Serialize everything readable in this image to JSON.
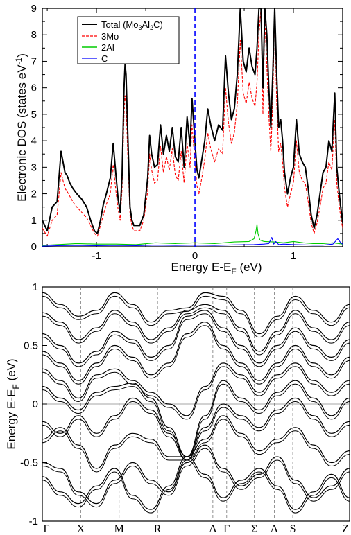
{
  "chart_data": [
    {
      "type": "line",
      "xlabel": "Energy E-E",
      "xlabel_sub": "F",
      "xlabel_unit": " (eV)",
      "ylabel": "Electronic DOS (states eV",
      "ylabel_sup": "-1",
      "ylabel_end": ")",
      "xlim": [
        -1.55,
        1.5
      ],
      "ylim": [
        0,
        9
      ],
      "xticks": [
        -1,
        0,
        1
      ],
      "xtick_labels": [
        "-1",
        "0",
        "1"
      ],
      "yticks": [
        0,
        1,
        2,
        3,
        4,
        5,
        6,
        7,
        8,
        9
      ],
      "ytick_labels": [
        "0",
        "1",
        "2",
        "3",
        "4",
        "5",
        "6",
        "7",
        "8",
        "9"
      ],
      "fermi_level": 0,
      "legend_position": "top-left",
      "legend": [
        {
          "label": "Total (Mo",
          "sub1": "3",
          "mid1": "Al",
          "sub2": "2",
          "end": "C)",
          "color": "#000000",
          "dash": false
        },
        {
          "label": "3Mo",
          "color": "#ff0000",
          "dash": true
        },
        {
          "label": "2Al",
          "color": "#00cc00",
          "dash": false
        },
        {
          "label": "C",
          "color": "#0000ff",
          "dash": false
        }
      ],
      "series": [
        {
          "name": "Total",
          "color": "#000000",
          "x": [
            -1.55,
            -1.5,
            -1.45,
            -1.4,
            -1.36,
            -1.32,
            -1.3,
            -1.27,
            -1.24,
            -1.2,
            -1.15,
            -1.1,
            -1.06,
            -1.02,
            -0.99,
            -0.96,
            -0.93,
            -0.9,
            -0.86,
            -0.83,
            -0.8,
            -0.78,
            -0.76,
            -0.74,
            -0.72,
            -0.71,
            -0.7,
            -0.68,
            -0.66,
            -0.64,
            -0.62,
            -0.59,
            -0.56,
            -0.52,
            -0.48,
            -0.46,
            -0.44,
            -0.41,
            -0.38,
            -0.35,
            -0.32,
            -0.29,
            -0.26,
            -0.23,
            -0.2,
            -0.17,
            -0.14,
            -0.11,
            -0.08,
            -0.05,
            -0.03,
            0,
            0.02,
            0.04,
            0.07,
            0.1,
            0.13,
            0.16,
            0.2,
            0.24,
            0.28,
            0.31,
            0.34,
            0.37,
            0.4,
            0.43,
            0.46,
            0.49,
            0.52,
            0.55,
            0.58,
            0.61,
            0.63,
            0.65,
            0.67,
            0.69,
            0.71,
            0.73,
            0.75,
            0.77,
            0.79,
            0.81,
            0.83,
            0.85,
            0.87,
            0.89,
            0.91,
            0.94,
            0.97,
            1.0,
            1.03,
            1.06,
            1.09,
            1.12,
            1.15,
            1.18,
            1.21,
            1.24,
            1.27,
            1.3,
            1.33,
            1.36,
            1.39,
            1.42,
            1.44,
            1.46,
            1.48,
            1.5
          ],
          "y": [
            1.0,
            0.6,
            1.5,
            1.7,
            3.6,
            2.8,
            2.7,
            2.4,
            2.2,
            2.0,
            1.8,
            1.5,
            1.0,
            0.6,
            0.5,
            1.0,
            1.6,
            2.0,
            2.6,
            3.9,
            2.6,
            1.8,
            1.3,
            2.7,
            6.0,
            6.9,
            6.5,
            4.0,
            1.5,
            1.0,
            0.8,
            0.8,
            0.8,
            1.2,
            2.6,
            4.2,
            3.5,
            3.0,
            3.1,
            4.6,
            3.5,
            4.2,
            3.6,
            4.5,
            3.4,
            3.2,
            4.5,
            3.0,
            4.9,
            3.8,
            5.6,
            4.0,
            2.9,
            2.6,
            3.3,
            4.0,
            5.2,
            4.6,
            4.0,
            4.6,
            4.4,
            7.2,
            5.8,
            4.8,
            5.2,
            6.5,
            9.0,
            7.0,
            6.6,
            7.5,
            6.8,
            6.5,
            7.5,
            9.0,
            9.0,
            6.0,
            9.0,
            8.0,
            6.0,
            4.5,
            6.5,
            9.0,
            6.5,
            4.5,
            4.8,
            4.0,
            2.8,
            2.0,
            2.6,
            3.0,
            4.8,
            3.5,
            3.2,
            3.0,
            2.2,
            1.2,
            0.7,
            1.2,
            2.0,
            2.8,
            3.0,
            4.0,
            3.6,
            5.8,
            3.0,
            2.2,
            1.5,
            0.9
          ]
        },
        {
          "name": "3Mo",
          "color": "#ff0000",
          "x": [
            -1.55,
            -1.5,
            -1.45,
            -1.4,
            -1.36,
            -1.32,
            -1.3,
            -1.27,
            -1.24,
            -1.2,
            -1.15,
            -1.1,
            -1.06,
            -1.02,
            -0.99,
            -0.96,
            -0.93,
            -0.9,
            -0.86,
            -0.83,
            -0.8,
            -0.78,
            -0.76,
            -0.74,
            -0.72,
            -0.71,
            -0.7,
            -0.68,
            -0.66,
            -0.64,
            -0.62,
            -0.59,
            -0.56,
            -0.52,
            -0.48,
            -0.46,
            -0.44,
            -0.41,
            -0.38,
            -0.35,
            -0.32,
            -0.29,
            -0.26,
            -0.23,
            -0.2,
            -0.17,
            -0.14,
            -0.11,
            -0.08,
            -0.05,
            -0.03,
            0,
            0.02,
            0.04,
            0.07,
            0.1,
            0.13,
            0.16,
            0.2,
            0.24,
            0.28,
            0.31,
            0.34,
            0.37,
            0.4,
            0.43,
            0.46,
            0.49,
            0.52,
            0.55,
            0.58,
            0.61,
            0.63,
            0.65,
            0.67,
            0.69,
            0.71,
            0.73,
            0.75,
            0.77,
            0.79,
            0.81,
            0.83,
            0.85,
            0.87,
            0.89,
            0.91,
            0.94,
            0.97,
            1.0,
            1.03,
            1.06,
            1.09,
            1.12,
            1.15,
            1.18,
            1.21,
            1.24,
            1.27,
            1.3,
            1.33,
            1.36,
            1.39,
            1.42,
            1.44,
            1.46,
            1.48,
            1.5
          ],
          "y": [
            0.7,
            0.4,
            1.0,
            1.2,
            2.8,
            2.2,
            2.1,
            1.9,
            1.7,
            1.5,
            1.3,
            1.1,
            0.8,
            0.5,
            0.4,
            0.8,
            1.2,
            1.6,
            2.0,
            3.1,
            2.0,
            1.4,
            1.0,
            2.2,
            5.0,
            5.7,
            5.4,
            3.2,
            1.2,
            0.8,
            0.6,
            0.6,
            0.6,
            1.0,
            2.1,
            3.5,
            2.9,
            2.4,
            2.5,
            3.8,
            2.8,
            3.4,
            2.9,
            3.7,
            2.7,
            2.5,
            3.6,
            2.4,
            3.9,
            3.0,
            4.6,
            3.2,
            2.3,
            2.0,
            2.6,
            3.3,
            4.3,
            3.7,
            3.2,
            3.7,
            3.5,
            6.0,
            4.7,
            3.9,
            4.3,
            5.4,
            7.8,
            5.8,
            5.4,
            6.2,
            5.6,
            5.3,
            6.2,
            8.0,
            9.0,
            5.0,
            8.6,
            6.8,
            5.0,
            3.6,
            5.4,
            9.0,
            5.4,
            3.6,
            3.9,
            3.2,
            2.2,
            1.5,
            2.0,
            2.4,
            4.0,
            2.8,
            2.5,
            2.4,
            1.7,
            0.9,
            0.5,
            0.9,
            1.5,
            2.2,
            2.4,
            3.2,
            2.9,
            4.8,
            2.4,
            1.7,
            1.1,
            0.7
          ]
        },
        {
          "name": "2Al",
          "color": "#00cc00",
          "x": [
            -1.55,
            -1.4,
            -1.2,
            -1.0,
            -0.8,
            -0.6,
            -0.4,
            -0.2,
            0,
            0.2,
            0.4,
            0.55,
            0.6,
            0.62,
            0.63,
            0.64,
            0.66,
            0.7,
            0.8,
            0.9,
            1.0,
            1.1,
            1.2,
            1.3,
            1.4,
            1.5
          ],
          "y": [
            0.05,
            0.08,
            0.12,
            0.1,
            0.1,
            0.08,
            0.15,
            0.12,
            0.15,
            0.12,
            0.18,
            0.2,
            0.3,
            0.6,
            0.85,
            0.5,
            0.25,
            0.2,
            0.18,
            0.15,
            0.2,
            0.15,
            0.12,
            0.12,
            0.15,
            0.1
          ]
        },
        {
          "name": "C",
          "color": "#0000ff",
          "x": [
            -1.55,
            -1.4,
            -1.2,
            -1.0,
            -0.8,
            -0.6,
            -0.4,
            -0.2,
            0,
            0.2,
            0.4,
            0.6,
            0.7,
            0.75,
            0.78,
            0.8,
            0.82,
            0.85,
            0.9,
            1.0,
            1.1,
            1.2,
            1.3,
            1.4,
            1.45,
            1.48,
            1.5
          ],
          "y": [
            0.02,
            0.04,
            0.05,
            0.04,
            0.05,
            0.04,
            0.06,
            0.05,
            0.06,
            0.05,
            0.07,
            0.08,
            0.1,
            0.12,
            0.35,
            0.1,
            0.2,
            0.08,
            0.1,
            0.08,
            0.07,
            0.06,
            0.06,
            0.1,
            0.3,
            0.15,
            0.1
          ]
        }
      ]
    },
    {
      "type": "line",
      "ylabel": "Energy E-E",
      "ylabel_sub": "F",
      "ylabel_unit": " (eV)",
      "ylim": [
        -1,
        1
      ],
      "yticks": [
        -1,
        -0.5,
        0,
        0.5,
        1
      ],
      "ytick_labels": [
        "-1",
        "-0.5",
        "0",
        "0.5",
        "1"
      ],
      "kpoint_labels": [
        "Γ",
        "X",
        "M",
        "R",
        "Δ",
        "Γ",
        "Σ",
        "Λ",
        "S",
        "Z"
      ],
      "kpoint_positions": [
        0,
        0.125,
        0.25,
        0.375,
        0.555,
        0.6,
        0.69,
        0.755,
        0.815,
        1.0
      ],
      "bands": [
        [
          -0.62,
          -0.75,
          -0.85,
          -0.7,
          -0.55,
          -0.78,
          -0.9,
          -0.7,
          -0.45,
          -0.6,
          -0.8,
          -0.65,
          -0.55,
          -0.7,
          -0.9,
          -0.75,
          -0.6,
          -0.8
        ],
        [
          -0.5,
          -0.55,
          -0.75,
          -0.85,
          -0.65,
          -0.5,
          -0.65,
          -0.75,
          -0.5,
          -0.35,
          -0.55,
          -0.7,
          -0.6,
          -0.45,
          -0.65,
          -0.8,
          -0.7,
          -0.55
        ],
        [
          -0.3,
          -0.2,
          -0.35,
          -0.55,
          -0.35,
          -0.25,
          -0.3,
          -0.45,
          -0.45,
          -0.3,
          -0.1,
          -0.25,
          -0.4,
          -0.3,
          -0.2,
          -0.35,
          -0.5,
          -0.4
        ],
        [
          -0.15,
          -0.25,
          -0.1,
          -0.25,
          -0.1,
          0.05,
          -0.05,
          -0.25,
          -0.45,
          -0.2,
          0.0,
          -0.1,
          -0.2,
          -0.05,
          0.05,
          -0.1,
          -0.25,
          -0.15
        ],
        [
          0.15,
          0.05,
          -0.05,
          0.1,
          0.15,
          0.18,
          0.05,
          -0.2,
          -0.45,
          -0.1,
          0.2,
          0.05,
          -0.05,
          0.1,
          0.2,
          0.05,
          -0.1,
          0.05
        ],
        [
          0.3,
          0.2,
          0.05,
          0.25,
          0.3,
          0.2,
          0.1,
          0.0,
          -0.1,
          0.15,
          0.35,
          0.25,
          0.1,
          0.25,
          0.35,
          0.2,
          0.1,
          0.2
        ],
        [
          0.45,
          0.35,
          0.2,
          0.35,
          0.5,
          0.4,
          0.25,
          0.35,
          0.6,
          0.7,
          0.5,
          0.35,
          0.2,
          0.35,
          0.5,
          0.35,
          0.25,
          0.4
        ],
        [
          0.6,
          0.5,
          0.35,
          0.45,
          0.62,
          0.55,
          0.4,
          0.5,
          0.75,
          0.8,
          0.65,
          0.5,
          0.35,
          0.5,
          0.65,
          0.5,
          0.4,
          0.55
        ],
        [
          0.78,
          0.7,
          0.55,
          0.65,
          0.8,
          0.7,
          0.55,
          0.65,
          0.8,
          0.85,
          0.8,
          0.65,
          0.45,
          0.62,
          0.8,
          0.65,
          0.55,
          0.7
        ],
        [
          0.95,
          0.85,
          0.75,
          0.8,
          0.95,
          0.85,
          0.7,
          0.8,
          0.82,
          0.95,
          0.92,
          0.8,
          0.6,
          0.75,
          0.92,
          0.8,
          0.7,
          0.85
        ]
      ]
    }
  ]
}
